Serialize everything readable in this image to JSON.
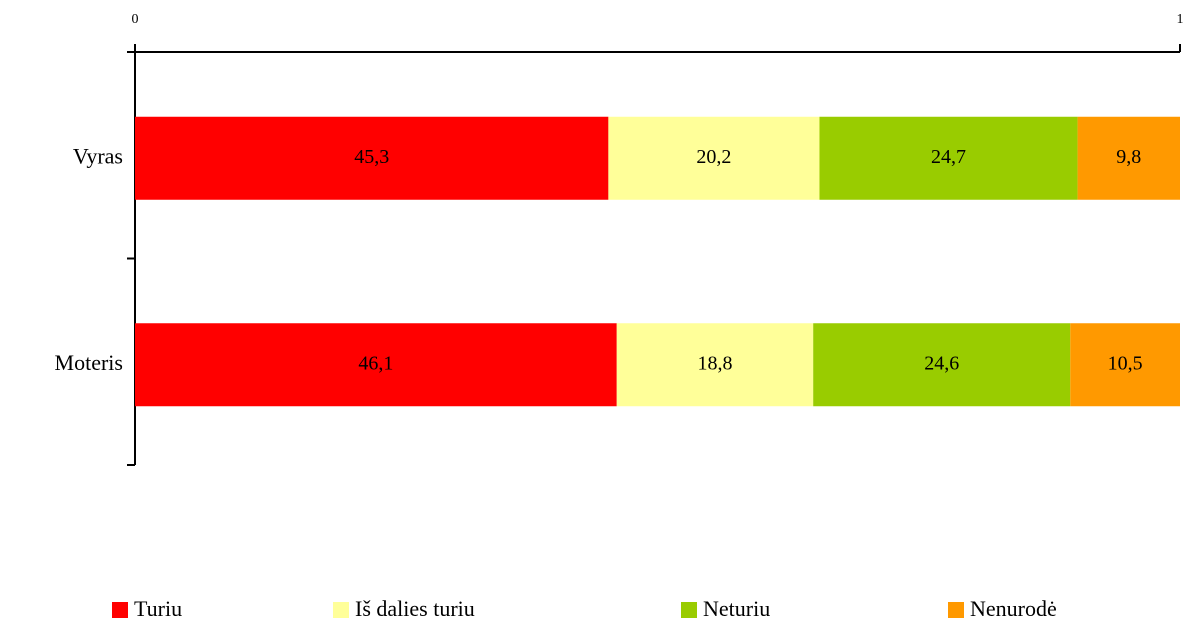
{
  "chart_data": {
    "type": "stacked-bar-horizontal",
    "categories": [
      "Vyras",
      "Moteris"
    ],
    "series": [
      {
        "name": "Turiu",
        "color": "#ff0000",
        "values": [
          0.453,
          0.461
        ],
        "value_labels": [
          "45,3",
          "46,1"
        ]
      },
      {
        "name": "Iš dalies turiu",
        "color": "#ffff99",
        "values": [
          0.202,
          0.188
        ],
        "value_labels": [
          "20,2",
          "18,8"
        ]
      },
      {
        "name": "Neturiu",
        "color": "#99cc00",
        "values": [
          0.247,
          0.246
        ],
        "value_labels": [
          "24,7",
          "24,6"
        ]
      },
      {
        "name": "Nenurodė",
        "color": "#ff9900",
        "values": [
          0.098,
          0.105
        ],
        "value_labels": [
          "9,8",
          "10,5"
        ]
      }
    ],
    "xlim": [
      0,
      1
    ],
    "xticks": [
      0,
      1
    ],
    "legend": "bottom"
  }
}
